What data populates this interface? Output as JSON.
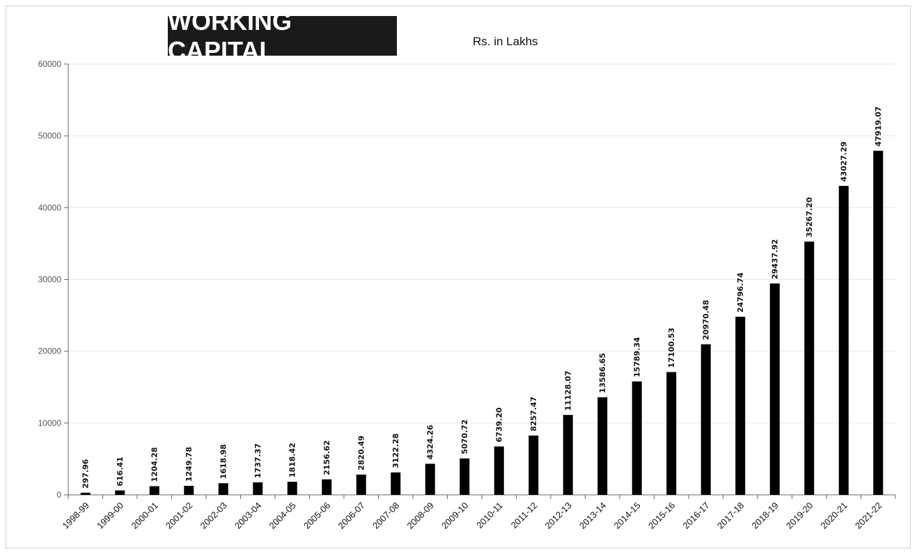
{
  "header": {
    "title": "WORKING CAPITAL",
    "units": "Rs. in Lakhs"
  },
  "colors": {
    "bar": "#000000",
    "title_bg": "#1a1a1a",
    "title_text": "#ffffff",
    "grid": "#e6e6e6",
    "axis": "#666666"
  },
  "chart_data": {
    "type": "bar",
    "title": "WORKING CAPITAL",
    "ylabel": "Rs. in Lakhs",
    "xlabel": "",
    "ylim": [
      0,
      60000
    ],
    "yticks": [
      0,
      10000,
      20000,
      30000,
      40000,
      50000,
      60000
    ],
    "grid": true,
    "categories": [
      "1998-99",
      "1999-00",
      "2000-01",
      "2001-02",
      "2002-03",
      "2003-04",
      "2004-05",
      "2005-06",
      "2006-07",
      "2007-08",
      "2008-09",
      "2009-10",
      "2010-11",
      "2011-12",
      "2012-13",
      "2013-14",
      "2014-15",
      "2015-16",
      "2016-17",
      "2017-18",
      "2018-19",
      "2019-20",
      "2020-21",
      "2021-22"
    ],
    "values": [
      297.96,
      616.41,
      1204.28,
      1249.78,
      1618.98,
      1737.37,
      1818.42,
      2156.62,
      2820.49,
      3122.28,
      4324.26,
      5070.72,
      6739.2,
      8257.47,
      11128.07,
      13586.65,
      15789.34,
      17100.53,
      20970.48,
      24796.74,
      29437.92,
      35267.2,
      43027.29,
      47919.07
    ],
    "data_labels": [
      "297.96",
      "616.41",
      "1204.28",
      "1249.78",
      "1618.98",
      "1737.37",
      "1818.42",
      "2156.62",
      "2820.49",
      "3122.28",
      "4324.26",
      "5070.72",
      "6739.20",
      "8257.47",
      "11128.07",
      "13586.65",
      "15789.34",
      "17100.53",
      "20970.48",
      "24796.74",
      "29437.92",
      "35267.20",
      "43027.29",
      "47919.07"
    ]
  }
}
